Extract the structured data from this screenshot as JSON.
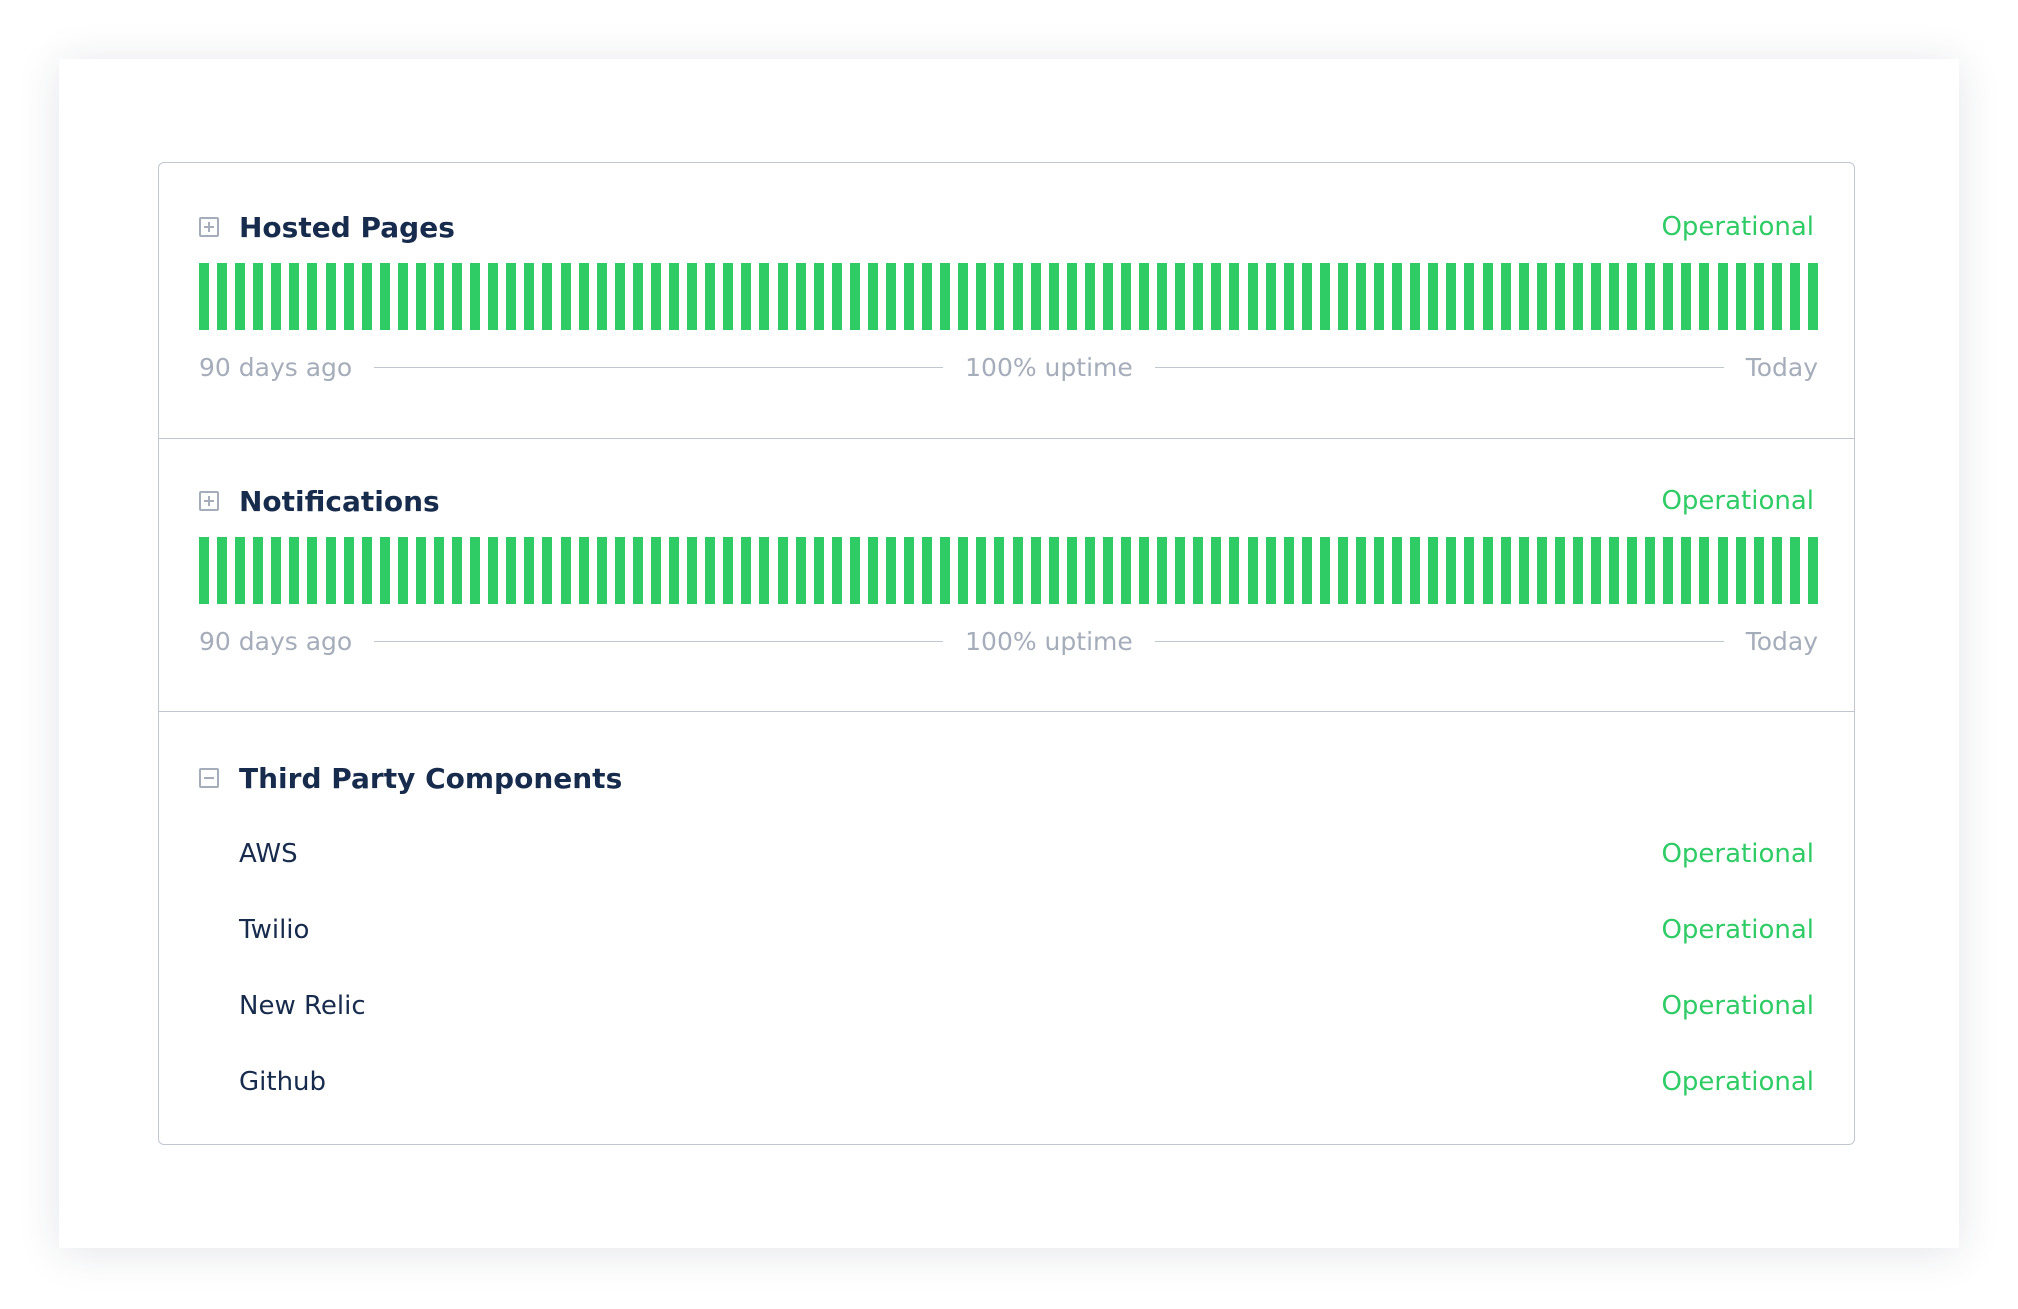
{
  "colors": {
    "operational": "#2fcc66",
    "title": "#172b4d",
    "muted": "#a5adba",
    "border": "#c1c7d0"
  },
  "components": [
    {
      "name": "Hosted Pages",
      "status": "Operational",
      "toggle_icon": "plus-square-icon",
      "days": 90,
      "uptime_percent": 100,
      "range_start": "90 days ago",
      "uptime_label": "100% uptime",
      "range_end": "Today"
    },
    {
      "name": "Notifications",
      "status": "Operational",
      "toggle_icon": "plus-square-icon",
      "days": 90,
      "uptime_percent": 100,
      "range_start": "90 days ago",
      "uptime_label": "100% uptime",
      "range_end": "Today"
    }
  ],
  "group": {
    "name": "Third Party Components",
    "toggle_icon": "minus-square-icon",
    "items": [
      {
        "name": "AWS",
        "status": "Operational"
      },
      {
        "name": "Twilio",
        "status": "Operational"
      },
      {
        "name": "New Relic",
        "status": "Operational"
      },
      {
        "name": "Github",
        "status": "Operational"
      }
    ]
  }
}
